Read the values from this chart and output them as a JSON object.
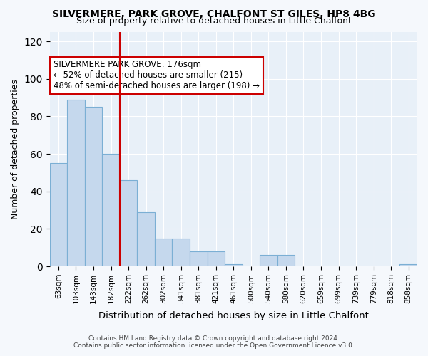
{
  "title": "SILVERMERE, PARK GROVE, CHALFONT ST GILES, HP8 4BG",
  "subtitle": "Size of property relative to detached houses in Little Chalfont",
  "xlabel": "Distribution of detached houses by size in Little Chalfont",
  "ylabel": "Number of detached properties",
  "categories": [
    "63sqm",
    "103sqm",
    "143sqm",
    "182sqm",
    "222sqm",
    "262sqm",
    "302sqm",
    "341sqm",
    "381sqm",
    "421sqm",
    "461sqm",
    "500sqm",
    "540sqm",
    "580sqm",
    "620sqm",
    "659sqm",
    "699sqm",
    "739sqm",
    "779sqm",
    "818sqm",
    "858sqm"
  ],
  "values": [
    55,
    89,
    85,
    60,
    46,
    29,
    15,
    15,
    8,
    8,
    1,
    0,
    6,
    6,
    0,
    0,
    0,
    0,
    0,
    0,
    1
  ],
  "bar_color": "#c5d8ed",
  "bar_edge_color": "#7bafd4",
  "vline_x_index": 3,
  "vline_color": "#cc0000",
  "vline_label": "SILVERMERE PARK GROVE: 176sqm",
  "annotation_line2": "← 52% of detached houses are smaller (215)",
  "annotation_line3": "48% of semi-detached houses are larger (198) →",
  "annotation_box_color": "#ffffff",
  "annotation_box_edge_color": "#cc0000",
  "ylim": [
    0,
    125
  ],
  "yticks": [
    0,
    20,
    40,
    60,
    80,
    100,
    120
  ],
  "background_color": "#e8f0f8",
  "fig_background_color": "#f5f8fc",
  "footer_line1": "Contains HM Land Registry data © Crown copyright and database right 2024.",
  "footer_line2": "Contains public sector information licensed under the Open Government Licence v3.0."
}
